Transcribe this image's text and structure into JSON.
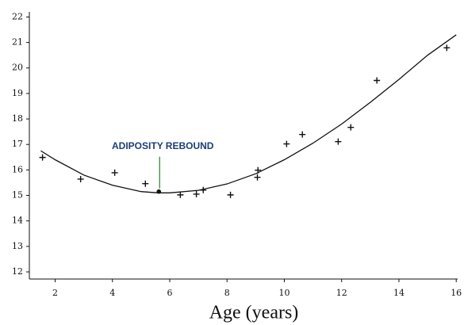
{
  "chart_data": {
    "type": "scatter",
    "x_label": "Age (years)",
    "xlim": [
      1.1,
      16.05
    ],
    "ylim": [
      11.72,
      22.2
    ],
    "xticks": [
      2,
      4,
      6,
      8,
      10,
      12,
      14,
      16
    ],
    "yticks": [
      12,
      13,
      14,
      15,
      16,
      17,
      18,
      19,
      20,
      21,
      22
    ],
    "series": [
      {
        "color": "#111111",
        "marker": "+",
        "x": [
          1.56,
          2.89,
          4.08,
          5.15,
          6.37,
          6.93,
          7.17,
          8.12,
          9.06,
          9.08,
          10.08,
          10.63,
          11.88,
          12.32,
          13.23,
          15.67
        ],
        "values": [
          16.49,
          15.64,
          15.89,
          15.46,
          15.02,
          15.05,
          15.21,
          15.02,
          15.71,
          15.99,
          17.02,
          17.39,
          17.11,
          17.67,
          19.51,
          20.79
        ]
      },
      {
        "color": "#111111",
        "marker": "line",
        "x": [
          1.5,
          2,
          3,
          4,
          5,
          5.6,
          6,
          7,
          8,
          9,
          10,
          11,
          12,
          13,
          14,
          15,
          16
        ],
        "values": [
          16.75,
          16.4,
          15.8,
          15.4,
          15.15,
          15.1,
          15.1,
          15.2,
          15.45,
          15.85,
          16.4,
          17.05,
          17.8,
          18.65,
          19.55,
          20.5,
          21.3
        ]
      }
    ],
    "annotation": {
      "text": "ADIPOSITY REBOUND",
      "x": 5.62,
      "y": 15.15,
      "color": "#1f3c78",
      "line_color": "#2e7d32"
    }
  }
}
